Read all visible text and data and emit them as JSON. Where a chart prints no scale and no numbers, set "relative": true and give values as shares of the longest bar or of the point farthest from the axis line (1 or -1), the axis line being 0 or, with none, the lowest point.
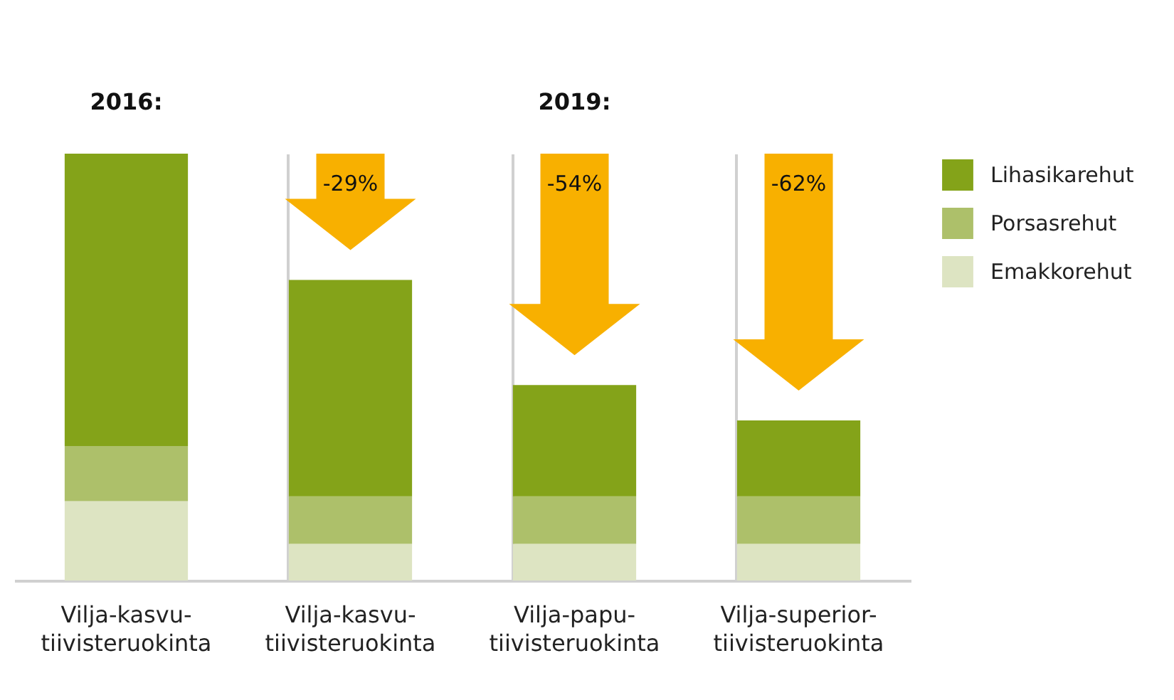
{
  "chart_data": {
    "type": "bar",
    "stacked": true,
    "relative": true,
    "categories": [
      "Vilja-kasvu-tiivisteruokinta",
      "Vilja-kasvu-tiivisteruokinta",
      "Vilja-papu-tiivisteruokinta",
      "Vilja-superior-tiivisteruokinta"
    ],
    "series": [
      {
        "name": "Emakkorehut",
        "color": "#dde4c2",
        "values": [
          0.186,
          0.086,
          0.086,
          0.086
        ]
      },
      {
        "name": "Porsasrehut",
        "color": "#adc06a",
        "values": [
          0.129,
          0.111,
          0.111,
          0.111
        ]
      },
      {
        "name": "Lihasikarehut",
        "color": "#84a319",
        "values": [
          0.685,
          0.507,
          0.261,
          0.178
        ]
      }
    ],
    "annotations": [
      "2016:",
      "2019:",
      "-29%",
      "-54%",
      "-62%"
    ],
    "grid": "x",
    "legend": "right"
  }
}
